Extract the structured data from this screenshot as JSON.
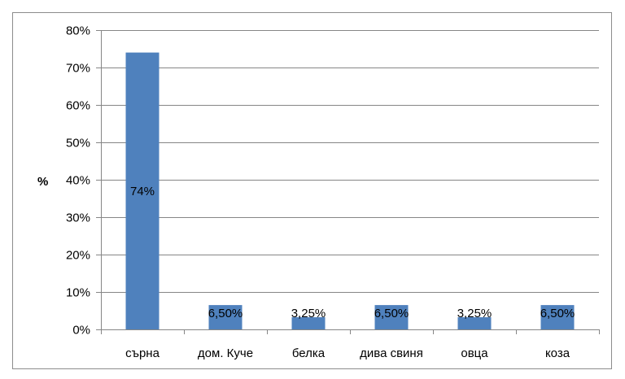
{
  "chart_data": {
    "type": "bar",
    "title": "",
    "xlabel": "",
    "ylabel": "%",
    "categories": [
      "сърна",
      "дом. Куче",
      "белка",
      "дива свиня",
      "овца",
      "коза"
    ],
    "values": [
      74,
      6.5,
      3.25,
      6.5,
      3.25,
      6.5
    ],
    "data_labels": [
      "74%",
      "6,50%",
      "3,25%",
      "6,50%",
      "3,25%",
      "6,50%"
    ],
    "ylim": [
      0,
      80
    ],
    "yticks": [
      0,
      10,
      20,
      30,
      40,
      50,
      60,
      70,
      80
    ],
    "ytick_labels": [
      "0%",
      "10%",
      "20%",
      "30%",
      "40%",
      "50%",
      "60%",
      "70%",
      "80%"
    ],
    "grid": true,
    "legend": "none",
    "bar_color": "#4f81bd",
    "grid_color": "#868686"
  }
}
